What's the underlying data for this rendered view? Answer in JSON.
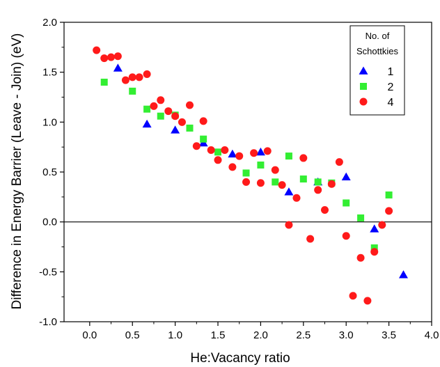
{
  "chart_data": {
    "type": "scatter",
    "title": "",
    "xlabel": "He:Vacancy ratio",
    "ylabel": "Difference in Energy Barrier (Leave - Join) (eV)",
    "xlim": [
      -0.3,
      4.0
    ],
    "ylim": [
      -1.0,
      2.0
    ],
    "xticks": [
      0.0,
      0.5,
      1.0,
      1.5,
      2.0,
      2.5,
      3.0,
      3.5,
      4.0
    ],
    "xtick_labels": [
      "0.0",
      "0.5",
      "1.0",
      "1.5",
      "2.0",
      "2.5",
      "3.0",
      "3.5",
      "4.0"
    ],
    "yticks": [
      -1.0,
      -0.5,
      0.0,
      0.5,
      1.0,
      1.5,
      2.0
    ],
    "ytick_labels": [
      "-1.0",
      "-0.5",
      "0.0",
      "0.5",
      "1.0",
      "1.5",
      "2.0"
    ],
    "reference_line_y": 0,
    "grid": false,
    "legend": {
      "title_lines": [
        "No. of",
        "Schottkies"
      ],
      "placement": "top-right"
    },
    "series": [
      {
        "name": "1",
        "marker": "triangle",
        "color": "#0000ff",
        "points": [
          [
            0.33,
            1.54
          ],
          [
            0.67,
            0.98
          ],
          [
            1.0,
            0.92
          ],
          [
            1.33,
            0.79
          ],
          [
            1.67,
            0.68
          ],
          [
            2.0,
            0.7
          ],
          [
            2.33,
            0.3
          ],
          [
            2.67,
            0.4
          ],
          [
            3.0,
            0.45
          ],
          [
            3.33,
            -0.07
          ],
          [
            3.67,
            -0.53
          ]
        ]
      },
      {
        "name": "2",
        "marker": "square",
        "color": "#33ee33",
        "points": [
          [
            0.17,
            1.4
          ],
          [
            0.5,
            1.31
          ],
          [
            0.67,
            1.13
          ],
          [
            0.83,
            1.06
          ],
          [
            1.0,
            1.07
          ],
          [
            1.17,
            0.94
          ],
          [
            1.33,
            0.83
          ],
          [
            1.5,
            0.7
          ],
          [
            1.83,
            0.49
          ],
          [
            2.0,
            0.57
          ],
          [
            2.17,
            0.4
          ],
          [
            2.33,
            0.66
          ],
          [
            2.5,
            0.43
          ],
          [
            2.67,
            0.4
          ],
          [
            2.83,
            0.39
          ],
          [
            3.0,
            0.19
          ],
          [
            3.17,
            0.04
          ],
          [
            3.33,
            -0.26
          ],
          [
            3.5,
            0.27
          ]
        ]
      },
      {
        "name": "4",
        "marker": "circle",
        "color": "#ff1a1a",
        "points": [
          [
            0.08,
            1.72
          ],
          [
            0.17,
            1.64
          ],
          [
            0.25,
            1.65
          ],
          [
            0.33,
            1.66
          ],
          [
            0.42,
            1.42
          ],
          [
            0.5,
            1.45
          ],
          [
            0.58,
            1.45
          ],
          [
            0.67,
            1.48
          ],
          [
            0.75,
            1.16
          ],
          [
            0.83,
            1.22
          ],
          [
            0.92,
            1.11
          ],
          [
            1.0,
            1.06
          ],
          [
            1.08,
            1.0
          ],
          [
            1.17,
            1.17
          ],
          [
            1.25,
            0.76
          ],
          [
            1.33,
            1.01
          ],
          [
            1.42,
            0.72
          ],
          [
            1.5,
            0.62
          ],
          [
            1.58,
            0.72
          ],
          [
            1.67,
            0.55
          ],
          [
            1.75,
            0.66
          ],
          [
            1.83,
            0.4
          ],
          [
            1.92,
            0.69
          ],
          [
            2.0,
            0.39
          ],
          [
            2.08,
            0.71
          ],
          [
            2.17,
            0.52
          ],
          [
            2.25,
            0.37
          ],
          [
            2.33,
            -0.03
          ],
          [
            2.42,
            0.24
          ],
          [
            2.5,
            0.64
          ],
          [
            2.58,
            -0.17
          ],
          [
            2.67,
            0.32
          ],
          [
            2.75,
            0.12
          ],
          [
            2.83,
            0.38
          ],
          [
            2.92,
            0.6
          ],
          [
            3.0,
            -0.14
          ],
          [
            3.08,
            -0.74
          ],
          [
            3.17,
            -0.36
          ],
          [
            3.25,
            -0.79
          ],
          [
            3.33,
            -0.3
          ],
          [
            3.42,
            -0.03
          ],
          [
            3.5,
            0.11
          ]
        ]
      }
    ]
  }
}
